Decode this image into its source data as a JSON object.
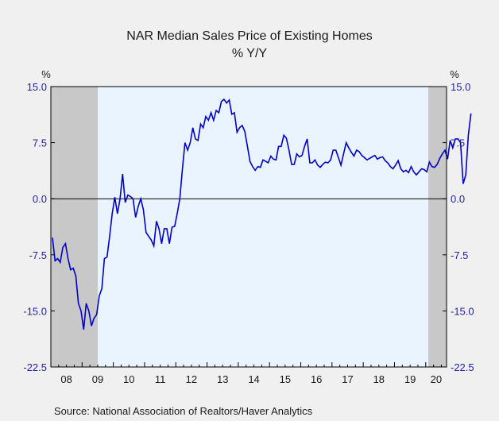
{
  "chart_data": {
    "type": "line",
    "title": "NAR Median Sales Price of Existing Homes",
    "subtitle": "% Y/Y",
    "left_unit": "%",
    "right_unit": "%",
    "source": "Source:  National Association of Realtors/Haver Analytics",
    "ylim": [
      -22.5,
      15.0
    ],
    "y_ticks": [
      15.0,
      7.5,
      0.0,
      -7.5,
      -15.0,
      -22.5
    ],
    "y_tick_labels": [
      "15.0",
      "7.5",
      "0.0",
      "-7.5",
      "-15.0",
      "-22.5"
    ],
    "x_tick_labels": [
      "08",
      "09",
      "10",
      "11",
      "12",
      "13",
      "14",
      "15",
      "16",
      "17",
      "18",
      "19",
      "20"
    ],
    "x_range": [
      "2008-01",
      "2020-08"
    ],
    "recessions": [
      [
        "2008-01",
        "2009-06"
      ],
      [
        "2020-02",
        "2020-08"
      ]
    ],
    "colors": {
      "line": "#0000c8",
      "plot_bg": "#eaf4ff",
      "recession": "#c8c8c8",
      "tick_text": "#1f1fb0"
    },
    "series": [
      {
        "start": "2008-01",
        "values": [
          -5.2,
          -8.3,
          -8.0,
          -8.5,
          -6.5,
          -6.0,
          -8.0,
          -9.5,
          -9.3,
          -10.3,
          -14.0,
          -15.0,
          -17.5,
          -14.0,
          -15.0,
          -17.0,
          -16.0,
          -15.5,
          -13.0,
          -12.0,
          -8.0,
          -7.8,
          -5.0,
          -2.0,
          0.2,
          -2.0,
          0.0,
          3.3,
          -0.5,
          0.5,
          0.3,
          0.0,
          -2.5,
          -1.0,
          0.0,
          -1.5,
          -4.5,
          -5.0,
          -5.5,
          -6.3,
          -3.0,
          -4.0,
          -6.0,
          -4.0,
          -4.0,
          -6.0,
          -3.8,
          -3.7,
          -2.0,
          0.0,
          4.0,
          7.5,
          6.5,
          7.5,
          9.5,
          8.0,
          7.8,
          10.0,
          9.5,
          11.0,
          10.5,
          11.5,
          10.5,
          11.8,
          11.5,
          13.0,
          13.3,
          12.8,
          13.2,
          11.3,
          11.5,
          8.9,
          9.5,
          9.8,
          9.0,
          7.0,
          5.0,
          4.3,
          3.8,
          4.3,
          4.2,
          5.2,
          5.0,
          4.8,
          5.7,
          5.3,
          5.2,
          7.0,
          7.0,
          8.5,
          8.1,
          6.5,
          4.6,
          4.6,
          6.0,
          5.6,
          5.8,
          7.0,
          8.0,
          4.8,
          4.8,
          5.2,
          4.5,
          4.2,
          4.6,
          4.9,
          4.8,
          5.2,
          6.5,
          6.5,
          5.5,
          4.5,
          6.0,
          7.5,
          6.8,
          6.2,
          5.7,
          6.5,
          6.3,
          5.8,
          5.5,
          5.2,
          5.4,
          5.6,
          5.8,
          5.3,
          5.5,
          5.6,
          5.1,
          4.8,
          4.3,
          4.0,
          4.5,
          5.1,
          4.0,
          3.6,
          3.8,
          3.5,
          4.3,
          3.6,
          3.2,
          3.6,
          4.0,
          3.9,
          3.6,
          4.9,
          4.3,
          4.2,
          4.6,
          5.4,
          6.0,
          6.5,
          5.3,
          7.8,
          6.8,
          8.0,
          8.0,
          7.5,
          2.0,
          3.2,
          8.5,
          11.4
        ]
      }
    ],
    "grid": false,
    "legend": "none"
  }
}
